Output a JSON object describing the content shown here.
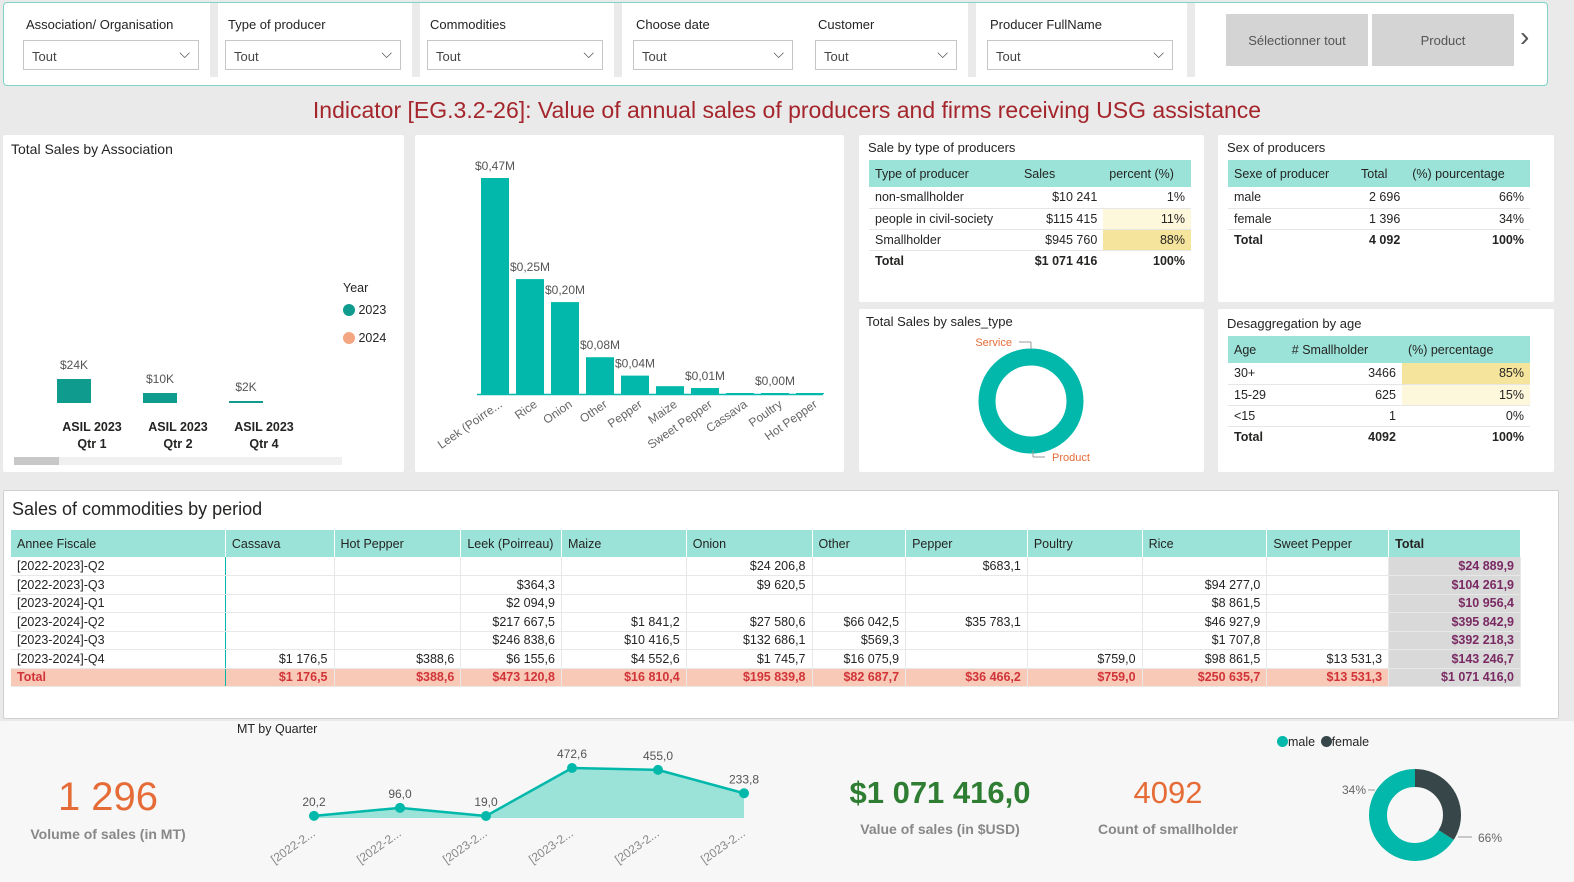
{
  "filters": [
    {
      "label": "Association/ Organisation",
      "value": "Tout"
    },
    {
      "label": "Type of producer",
      "value": "Tout"
    },
    {
      "label": "Commodities",
      "value": "Tout"
    },
    {
      "label": "Choose date",
      "value": "Tout"
    },
    {
      "label": "Customer",
      "value": "Tout"
    },
    {
      "label": "Producer FullName",
      "value": "Tout"
    }
  ],
  "buttons": {
    "select_all": "Sélectionner tout",
    "product": "Product",
    "next": "›"
  },
  "page_title": "Indicator [EG.3.2-26]: Value of annual sales of producers and firms receiving USG assistance",
  "assoc_chart": {
    "title": "Total Sales by Association",
    "legend_title": "Year",
    "legend": [
      {
        "name": "2023",
        "color": "#0f9b8e"
      },
      {
        "name": "2024",
        "color": "#f4a582"
      }
    ],
    "bars": [
      {
        "label_line1": "ASIL 2023",
        "label_line2": "Qtr 1",
        "value": 24,
        "data_label": "$24K"
      },
      {
        "label_line1": "ASIL 2023",
        "label_line2": "Qtr 2",
        "value": 10,
        "data_label": "$10K"
      },
      {
        "label_line1": "ASIL 2023",
        "label_line2": "Qtr 4",
        "value": 2,
        "data_label": "$2K"
      }
    ]
  },
  "commodity_chart": {
    "bars": [
      {
        "category": "Leek (Poirre...",
        "value": 0.47,
        "data_label": "$0,47M"
      },
      {
        "category": "Rice",
        "value": 0.25,
        "data_label": "$0,25M"
      },
      {
        "category": "Onion",
        "value": 0.2,
        "data_label": "$0,20M"
      },
      {
        "category": "Other",
        "value": 0.08,
        "data_label": "$0,08M"
      },
      {
        "category": "Pepper",
        "value": 0.04,
        "data_label": "$0,04M"
      },
      {
        "category": "Maize",
        "value": 0.017,
        "data_label": ""
      },
      {
        "category": "Sweet Pepper",
        "value": 0.013,
        "data_label": "$0,01M"
      },
      {
        "category": "Cassava",
        "value": 0.0012,
        "data_label": ""
      },
      {
        "category": "Poultry",
        "value": 0.0008,
        "data_label": "$0,00M"
      },
      {
        "category": "Hot Pepper",
        "value": 0.0004,
        "data_label": ""
      }
    ]
  },
  "type_table": {
    "title": "Sale by type of producers",
    "headers": [
      "Type of producer",
      "Sales",
      "percent (%)"
    ],
    "rows": [
      {
        "c": [
          "non-smallholder",
          "$10 241",
          "1%"
        ],
        "pct": 1
      },
      {
        "c": [
          "people in civil-society",
          "$115 415",
          "11%"
        ],
        "pct": 11
      },
      {
        "c": [
          "Smallholder",
          "$945 760",
          "88%"
        ],
        "pct": 88
      }
    ],
    "total": [
      "Total",
      "$1 071 416",
      "100%"
    ]
  },
  "sex_table": {
    "title": "Sex of producers",
    "headers": [
      "Sexe of producer",
      "Total",
      "(%) pourcentage"
    ],
    "rows": [
      [
        "male",
        "2 696",
        "66%"
      ],
      [
        "female",
        "1 396",
        "34%"
      ]
    ],
    "total": [
      "Total",
      "4 092",
      "100%"
    ]
  },
  "sales_type_chart": {
    "title": "Total Sales by sales_type",
    "labels": [
      "Service",
      "Product"
    ]
  },
  "age_table": {
    "title": "Desaggregation by age",
    "headers": [
      "Age",
      "# Smallholder",
      "(%) percentage"
    ],
    "rows": [
      {
        "c": [
          "30+",
          "3466",
          "85%"
        ],
        "pct": 85
      },
      {
        "c": [
          "15-29",
          "625",
          "15%"
        ],
        "pct": 15
      },
      {
        "c": [
          "<15",
          "1",
          "0%"
        ],
        "pct": 0
      }
    ],
    "total": [
      "Total",
      "4092",
      "100%"
    ]
  },
  "matrix": {
    "title": "Sales of commodities by period",
    "headers": [
      "Annee Fiscale",
      "Cassava",
      "Hot Pepper",
      "Leek (Poirreau)",
      "Maize",
      "Onion",
      "Other",
      "Pepper",
      "Poultry",
      "Rice",
      "Sweet Pepper",
      "Total"
    ],
    "rows": [
      [
        "[2022-2023]-Q2",
        "",
        "",
        "",
        "",
        "$24 206,8",
        "",
        "$683,1",
        "",
        "",
        "",
        "$24 889,9"
      ],
      [
        "[2022-2023]-Q3",
        "",
        "",
        "$364,3",
        "",
        "$9 620,5",
        "",
        "",
        "",
        "$94 277,0",
        "",
        "$104 261,9"
      ],
      [
        "[2023-2024]-Q1",
        "",
        "",
        "$2 094,9",
        "",
        "",
        "",
        "",
        "",
        "$8 861,5",
        "",
        "$10 956,4"
      ],
      [
        "[2023-2024]-Q2",
        "",
        "",
        "$217 667,5",
        "$1 841,2",
        "$27 580,6",
        "$66 042,5",
        "$35 783,1",
        "",
        "$46 927,9",
        "",
        "$395 842,9"
      ],
      [
        "[2023-2024]-Q3",
        "",
        "",
        "$246 838,6",
        "$10 416,5",
        "$132 686,1",
        "$569,3",
        "",
        "",
        "$1 707,8",
        "",
        "$392 218,3"
      ],
      [
        "[2023-2024]-Q4",
        "$1 176,5",
        "$388,6",
        "$6 155,6",
        "$4 552,6",
        "$1 745,7",
        "$16 075,9",
        "",
        "$759,0",
        "$98 861,5",
        "$13 531,3",
        "$143 246,7"
      ]
    ],
    "total": [
      "Total",
      "$1 176,5",
      "$388,6",
      "$473 120,8",
      "$16 810,4",
      "$195 839,8",
      "$82 687,7",
      "$36 466,2",
      "$759,0",
      "$250 635,7",
      "$13 531,3",
      "$1 071 416,0"
    ]
  },
  "mt_chart": {
    "title": "MT by Quarter",
    "points": [
      {
        "x": "[2022-2...",
        "y": 20.2,
        "label": "20,2"
      },
      {
        "x": "[2022-2...",
        "y": 96.0,
        "label": "96,0"
      },
      {
        "x": "[2023-2...",
        "y": 19.0,
        "label": "19,0"
      },
      {
        "x": "[2023-2...",
        "y": 472.6,
        "label": "472,6"
      },
      {
        "x": "[2023-2...",
        "y": 455.0,
        "label": "455,0"
      },
      {
        "x": "[2023-2...",
        "y": 233.8,
        "label": "233,8"
      }
    ]
  },
  "kpis": {
    "volume": {
      "value": "1 296",
      "label": "Volume of sales (in MT)",
      "color": "#e66c37"
    },
    "value": {
      "value": "$1 071 416,0",
      "label": "Value of sales (in $USD)",
      "color": "#2e7d32"
    },
    "count": {
      "value": "4092",
      "label": "Count of smallholder",
      "color": "#e66c37"
    }
  },
  "gender_donut": {
    "legend": [
      {
        "name": "male",
        "color": "#01b8aa"
      },
      {
        "name": "female",
        "color": "#374649"
      }
    ],
    "male_pct": 66,
    "female_pct": 34,
    "male_label": "66%",
    "female_label": "34%"
  }
}
